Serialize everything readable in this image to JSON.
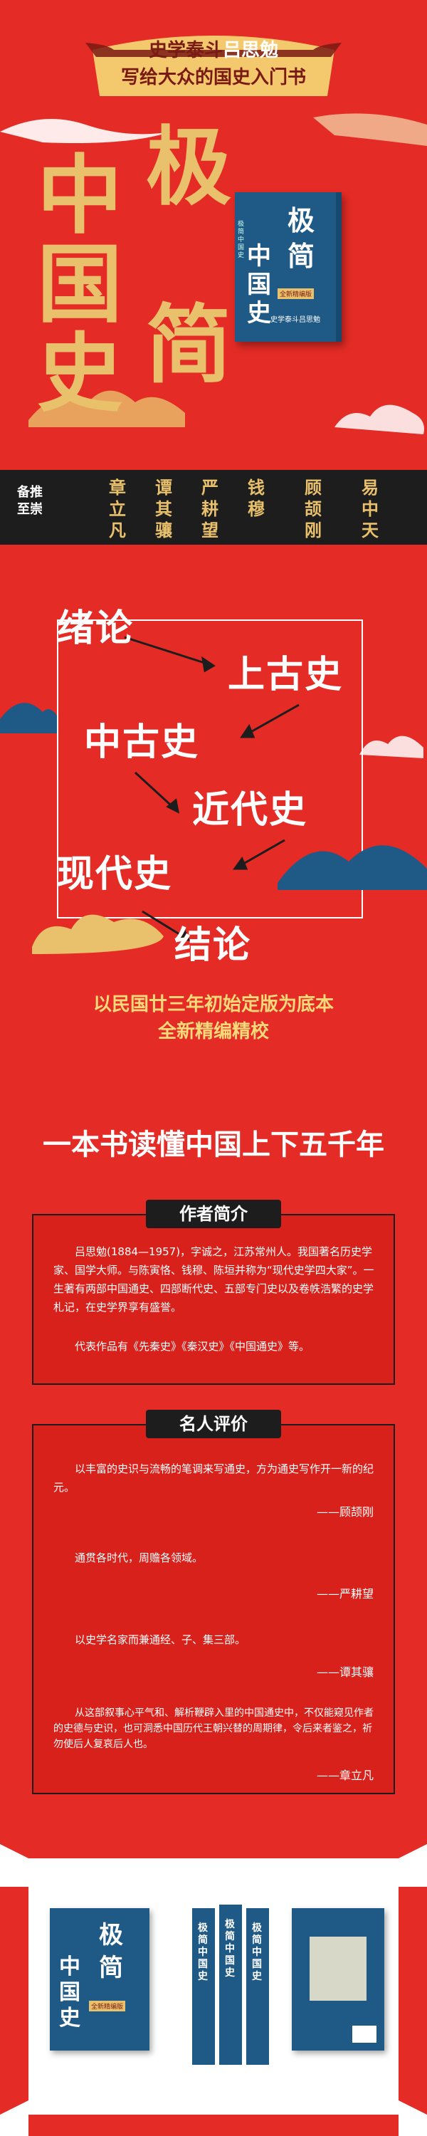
{
  "header": {
    "line1_prefix": "史学泰斗",
    "line1_name": "吕思勉",
    "line2": "写给大众的国史入门书"
  },
  "title_chars": [
    "中",
    "国",
    "史",
    "极",
    "简"
  ],
  "book": {
    "title_chars": [
      "极",
      "简",
      "中",
      "国",
      "史"
    ],
    "spine_small": "极简中国史",
    "author": "史学泰斗吕思勉",
    "badge": "全新精编版"
  },
  "recommend": {
    "label": "备推至崇",
    "names": [
      [
        "章",
        "立",
        "凡"
      ],
      [
        "谭",
        "其",
        "骧"
      ],
      [
        "严",
        "耕",
        "望"
      ],
      [
        "钱",
        "穆",
        ""
      ],
      [
        "顾",
        "颉",
        "刚"
      ],
      [
        "易",
        "中",
        "天"
      ]
    ]
  },
  "chapters": [
    "绪论",
    "上古史",
    "中古史",
    "近代史",
    "现代史",
    "结论"
  ],
  "edition": {
    "line1": "以民国廿三年初始定版为底本",
    "line2": "全新精编精校"
  },
  "headline": "一本书读懂中国上下五千年",
  "author_intro": {
    "title": "作者简介",
    "p1": "吕思勉(1884—1957)，字诚之，江苏常州人。我国著名历史学家、国学大师。与陈寅恪、钱穆、陈垣并称为“现代史学四大家”。一生著有两部中国通史、四部断代史、五部专门史以及卷帙浩繁的史学札记，在史学界享有盛誉。",
    "p2": "代表作品有《先秦史》《秦汉史》《中国通史》等。"
  },
  "reviews": {
    "title": "名人评价",
    "items": [
      {
        "text": "以丰富的史识与流畅的笔调来写通史，方为通史写作开一新的纪元。",
        "by": "——顾颉刚"
      },
      {
        "text": "通贯各时代，周赡各领域。",
        "by": "——严耕望"
      },
      {
        "text": "以史学名家而兼通经、子、集三部。",
        "by": "——谭其骧"
      },
      {
        "text": "从这部叙事心平气和、解析鞭辟入里的中国通史中，不仅能窥见作者的史德与史识，也可洞悉中国历代王朝兴替的周期律，令后来者鉴之，祈勿使后人复哀后人也。",
        "by": "——章立凡"
      }
    ]
  },
  "colors": {
    "bg": "#e52b25",
    "gold": "#e9c06b",
    "dark": "#1d1d1d",
    "book": "#1f5a86"
  }
}
